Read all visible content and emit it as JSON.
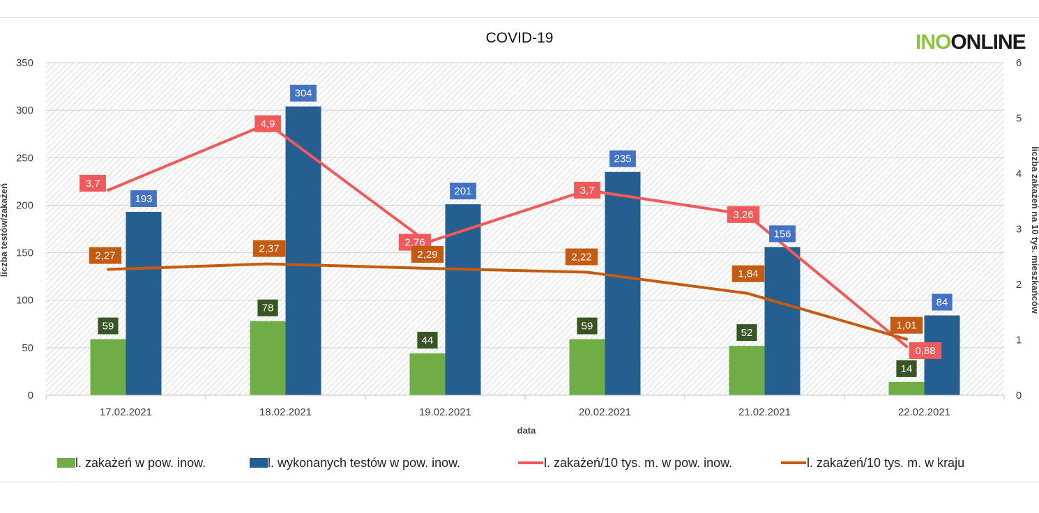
{
  "logo": {
    "part1": "INO",
    "part2": "ONLINE"
  },
  "chart_data": {
    "type": "bar",
    "title": "COVID-19",
    "xlabel": "data",
    "ylabel": "liczba testów/zakażeń",
    "ylabel_right": "liczba zakażeń na 10 tys. mieszkańców",
    "ylim": [
      0,
      350
    ],
    "ylim_right": [
      0,
      6
    ],
    "yticks": [
      "0",
      "50",
      "100",
      "150",
      "200",
      "250",
      "300",
      "350"
    ],
    "yticks_right": [
      "0",
      "1",
      "2",
      "3",
      "4",
      "5",
      "6"
    ],
    "categories": [
      "17.02.2021",
      "18.02.2021",
      "19.02.2021",
      "20.02.2021",
      "21.02.2021",
      "22.02.2021"
    ],
    "series": [
      {
        "name": "l. zakażeń w pow. inow.",
        "kind": "bar",
        "axis": "left",
        "color": "#70ad47",
        "label_color": "#375623",
        "values": [
          59,
          78,
          44,
          59,
          52,
          14
        ],
        "labels": [
          "59",
          "78",
          "44",
          "59",
          "52",
          "14"
        ]
      },
      {
        "name": "l. wykonanych testów w pow. inow.",
        "kind": "bar",
        "axis": "left",
        "color": "#255e91",
        "label_color": "#4472c4",
        "values": [
          193,
          304,
          201,
          235,
          156,
          84
        ],
        "labels": [
          "193",
          "304",
          "201",
          "235",
          "156",
          "84"
        ]
      },
      {
        "name": "l. zakażeń/10 tys. m. w pow. inow.",
        "kind": "line",
        "axis": "right",
        "color": "#f15a5a",
        "label_color": "#f15a5a",
        "values": [
          3.7,
          4.9,
          2.76,
          3.7,
          3.26,
          0.88
        ],
        "labels": [
          "3,7",
          "4,9",
          "2,76",
          "3,7",
          "3,26",
          "0,88"
        ]
      },
      {
        "name": "l. zakażeń/10 tys. m. w kraju",
        "kind": "line",
        "axis": "right",
        "color": "#c55a11",
        "label_color": "#c55a11",
        "values": [
          2.27,
          2.37,
          2.29,
          2.22,
          1.84,
          1.01
        ],
        "labels": [
          "2,27",
          "2,37",
          "2,29",
          "2,22",
          "1,84",
          "1,01"
        ]
      }
    ]
  }
}
